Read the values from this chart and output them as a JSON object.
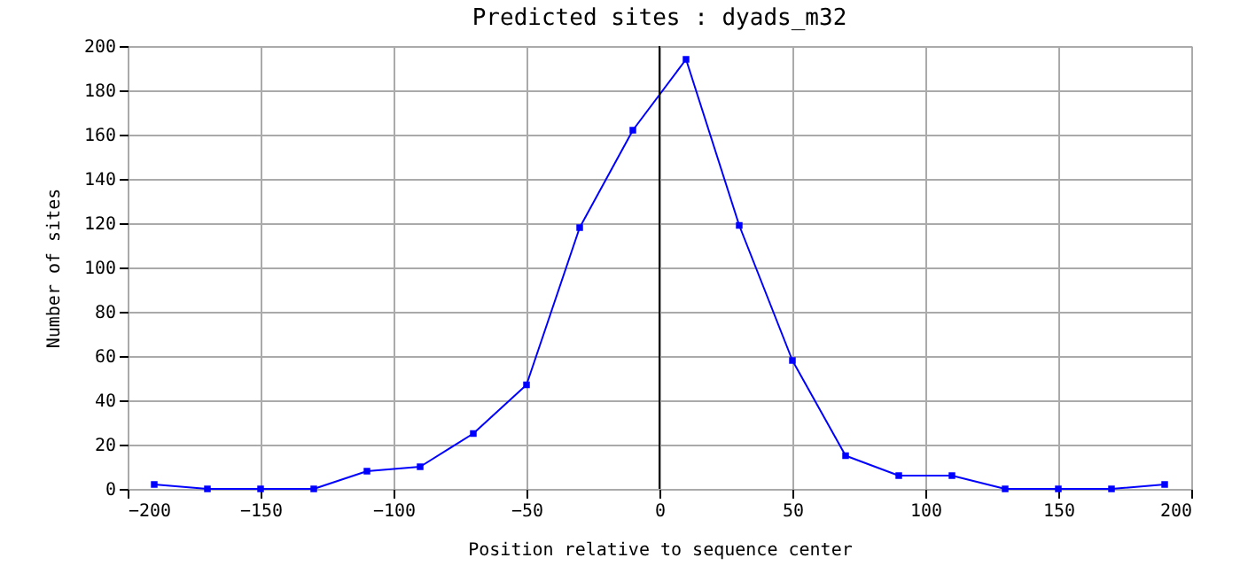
{
  "chart_data": {
    "type": "line",
    "title": "Predicted sites : dyads_m32",
    "xlabel": "Position relative to sequence center",
    "ylabel": "Number of sites",
    "x": [
      -190,
      -170,
      -150,
      -130,
      -110,
      -90,
      -70,
      -50,
      -30,
      -10,
      10,
      30,
      50,
      70,
      90,
      110,
      130,
      150,
      170,
      190
    ],
    "series": [
      {
        "color": "#0000ff",
        "values": [
          2,
          0,
          0,
          0,
          8,
          10,
          25,
          47,
          118,
          162,
          194,
          119,
          58,
          15,
          6,
          6,
          0,
          0,
          0,
          2
        ]
      }
    ],
    "xlim": [
      -200,
      200
    ],
    "xticks": [
      -200,
      -150,
      -100,
      -50,
      0,
      50,
      100,
      150,
      200
    ],
    "ylim": [
      0,
      200
    ],
    "yticks": [
      0,
      20,
      40,
      60,
      80,
      100,
      120,
      140,
      160,
      180,
      200
    ],
    "grid": true,
    "marker": "square",
    "line_style": "solid",
    "ref_lines": [
      {
        "axis": "x",
        "value": 0,
        "color": "#000000"
      }
    ]
  }
}
